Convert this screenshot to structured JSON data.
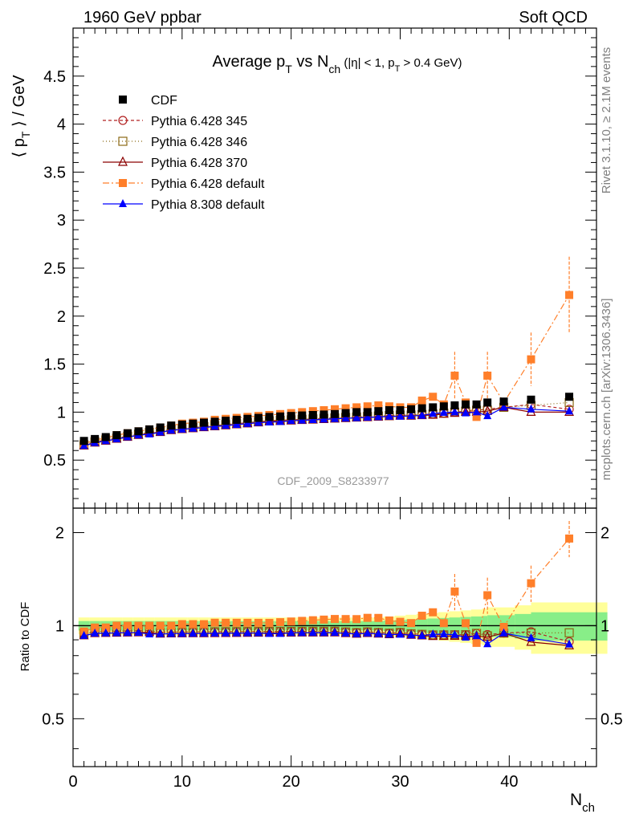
{
  "header": {
    "left": "1960 GeV ppbar",
    "right": "Soft QCD"
  },
  "side_labels": {
    "rivet": "Rivet 3.1.10, ≥ 2.1M events",
    "mcplots": "mcplots.cern.ch [arXiv:1306.3436]"
  },
  "chart_data": [
    {
      "type": "scatter",
      "panel": "main",
      "title": "Average p_T vs N_ch (|η| < 1, p_T > 0.4 GeV)",
      "ylabel": "⟨ p_T ⟩ / GeV",
      "xlabel": "N_ch",
      "watermark": "CDF_2009_S8233977",
      "xlim": [
        0,
        48
      ],
      "ylim": [
        0,
        5
      ],
      "yticks": [
        "0.5",
        "1",
        "1.5",
        "2",
        "2.5",
        "3",
        "3.5",
        "4",
        "4.5"
      ],
      "legend_position": "top-left",
      "x": [
        1,
        2,
        3,
        4,
        5,
        6,
        7,
        8,
        9,
        10,
        11,
        12,
        13,
        14,
        15,
        16,
        17,
        18,
        19,
        20,
        21,
        22,
        23,
        24,
        25,
        26,
        27,
        28,
        29,
        30,
        31,
        32,
        33,
        34,
        35,
        36,
        37,
        38,
        39.5,
        42,
        45.5
      ],
      "series": [
        {
          "name": "CDF",
          "style": "data",
          "color": "#000000",
          "marker": "square",
          "values": [
            0.7,
            0.72,
            0.74,
            0.76,
            0.78,
            0.8,
            0.82,
            0.84,
            0.86,
            0.87,
            0.88,
            0.89,
            0.9,
            0.91,
            0.92,
            0.93,
            0.94,
            0.95,
            0.955,
            0.96,
            0.965,
            0.97,
            0.975,
            0.98,
            0.99,
            1.0,
            1.0,
            1.01,
            1.02,
            1.02,
            1.03,
            1.04,
            1.05,
            1.06,
            1.07,
            1.08,
            1.08,
            1.1,
            1.11,
            1.13,
            1.16
          ]
        },
        {
          "name": "Pythia 6.428 345",
          "color": "#b22222",
          "marker": "circle-open",
          "dash": "4,3",
          "values": [
            0.66,
            0.69,
            0.71,
            0.73,
            0.75,
            0.77,
            0.79,
            0.8,
            0.82,
            0.83,
            0.84,
            0.85,
            0.86,
            0.87,
            0.88,
            0.89,
            0.9,
            0.91,
            0.915,
            0.92,
            0.925,
            0.93,
            0.935,
            0.94,
            0.945,
            0.95,
            0.955,
            0.96,
            0.965,
            0.97,
            0.97,
            0.975,
            0.98,
            0.99,
            1.0,
            1.01,
            1.02,
            1.03,
            1.05,
            1.08,
            1.03
          ]
        },
        {
          "name": "Pythia 6.428 346",
          "color": "#8b6914",
          "marker": "square-open",
          "dash": "1,3",
          "values": [
            0.66,
            0.69,
            0.71,
            0.73,
            0.75,
            0.77,
            0.79,
            0.8,
            0.82,
            0.83,
            0.84,
            0.85,
            0.86,
            0.87,
            0.88,
            0.89,
            0.9,
            0.91,
            0.915,
            0.92,
            0.925,
            0.93,
            0.935,
            0.94,
            0.945,
            0.95,
            0.955,
            0.96,
            0.965,
            0.97,
            0.97,
            0.975,
            0.98,
            0.99,
            1.0,
            1.01,
            1.02,
            1.02,
            1.05,
            1.07,
            1.1
          ]
        },
        {
          "name": "Pythia 6.428 370",
          "color": "#8b0000",
          "marker": "triangle-open",
          "dash": "",
          "values": [
            0.65,
            0.68,
            0.7,
            0.72,
            0.74,
            0.76,
            0.78,
            0.79,
            0.81,
            0.82,
            0.83,
            0.84,
            0.85,
            0.86,
            0.87,
            0.88,
            0.89,
            0.9,
            0.905,
            0.91,
            0.915,
            0.92,
            0.925,
            0.93,
            0.935,
            0.94,
            0.945,
            0.95,
            0.955,
            0.96,
            0.96,
            0.965,
            0.97,
            0.98,
            0.99,
            1.0,
            1.0,
            1.01,
            1.05,
            1.0,
            1.0
          ]
        },
        {
          "name": "Pythia 6.428 default",
          "color": "#ff7f2a",
          "marker": "square",
          "dash": "8,3,2,3",
          "values": [
            0.67,
            0.71,
            0.73,
            0.76,
            0.78,
            0.8,
            0.82,
            0.84,
            0.86,
            0.88,
            0.89,
            0.9,
            0.92,
            0.93,
            0.94,
            0.95,
            0.96,
            0.97,
            0.98,
            0.99,
            1.0,
            1.01,
            1.02,
            1.03,
            1.04,
            1.05,
            1.06,
            1.07,
            1.06,
            1.05,
            1.05,
            1.12,
            1.16,
            1.08,
            1.38,
            1.1,
            0.95,
            1.38,
            1.1,
            1.55,
            2.22
          ]
        },
        {
          "name": "Pythia 8.308 default",
          "color": "#0000ff",
          "marker": "triangle",
          "dash": "",
          "values": [
            0.65,
            0.68,
            0.7,
            0.72,
            0.74,
            0.76,
            0.77,
            0.79,
            0.81,
            0.82,
            0.83,
            0.84,
            0.85,
            0.86,
            0.87,
            0.88,
            0.89,
            0.895,
            0.9,
            0.91,
            0.915,
            0.92,
            0.925,
            0.93,
            0.935,
            0.94,
            0.945,
            0.95,
            0.955,
            0.955,
            0.96,
            0.965,
            0.985,
            0.995,
            1.0,
            0.99,
            1.0,
            0.96,
            1.05,
            1.03,
            1.01
          ]
        }
      ]
    },
    {
      "type": "scatter",
      "panel": "ratio",
      "ylabel": "Ratio to CDF",
      "xlabel": "N_ch",
      "xlim": [
        0,
        48
      ],
      "ylim": [
        0.35,
        2.4
      ],
      "yticks": [
        "0.5",
        "1",
        "2"
      ],
      "xticks": [
        "0",
        "10",
        "20",
        "30",
        "40"
      ]
    }
  ]
}
